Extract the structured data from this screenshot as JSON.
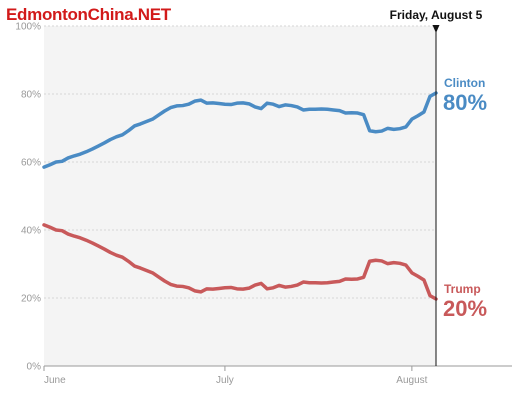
{
  "watermark": "EdmontonChina.NET",
  "chart_data": {
    "type": "line",
    "title": "",
    "xlabel": "",
    "ylabel": "",
    "ylim": [
      0,
      100
    ],
    "y_ticks": [
      "0%",
      "20%",
      "40%",
      "60%",
      "80%",
      "100%"
    ],
    "x_range": [
      "2016-06-01",
      "2016-08-05"
    ],
    "x_ticks": [
      {
        "label": "June",
        "date": "2016-06-01"
      },
      {
        "label": "July",
        "date": "2016-07-01"
      },
      {
        "label": "August",
        "date": "2016-08-01"
      }
    ],
    "grid": true,
    "marker": {
      "date": "2016-08-05",
      "label": "Friday, August 5"
    },
    "series": [
      {
        "name": "Clinton",
        "color": "#4a8bc4",
        "end_label": "80%",
        "points": [
          [
            "2016-06-01",
            58.5
          ],
          [
            "2016-06-02",
            59.2
          ],
          [
            "2016-06-03",
            60.0
          ],
          [
            "2016-06-04",
            60.2
          ],
          [
            "2016-06-05",
            61.2
          ],
          [
            "2016-06-06",
            61.8
          ],
          [
            "2016-06-07",
            62.3
          ],
          [
            "2016-06-08",
            63.0
          ],
          [
            "2016-06-09",
            63.8
          ],
          [
            "2016-06-10",
            64.7
          ],
          [
            "2016-06-11",
            65.6
          ],
          [
            "2016-06-12",
            66.6
          ],
          [
            "2016-06-13",
            67.4
          ],
          [
            "2016-06-14",
            68.0
          ],
          [
            "2016-06-15",
            69.2
          ],
          [
            "2016-06-16",
            70.6
          ],
          [
            "2016-06-17",
            71.2
          ],
          [
            "2016-06-18",
            71.9
          ],
          [
            "2016-06-19",
            72.6
          ],
          [
            "2016-06-20",
            73.8
          ],
          [
            "2016-06-21",
            75.0
          ],
          [
            "2016-06-22",
            76.0
          ],
          [
            "2016-06-23",
            76.5
          ],
          [
            "2016-06-24",
            76.6
          ],
          [
            "2016-06-25",
            77.0
          ],
          [
            "2016-06-26",
            77.9
          ],
          [
            "2016-06-27",
            78.2
          ],
          [
            "2016-06-28",
            77.3
          ],
          [
            "2016-06-29",
            77.4
          ],
          [
            "2016-06-30",
            77.2
          ],
          [
            "2016-07-01",
            77.0
          ],
          [
            "2016-07-02",
            76.9
          ],
          [
            "2016-07-03",
            77.3
          ],
          [
            "2016-07-04",
            77.4
          ],
          [
            "2016-07-05",
            77.1
          ],
          [
            "2016-07-06",
            76.2
          ],
          [
            "2016-07-07",
            75.7
          ],
          [
            "2016-07-08",
            77.3
          ],
          [
            "2016-07-09",
            77.0
          ],
          [
            "2016-07-10",
            76.3
          ],
          [
            "2016-07-11",
            76.8
          ],
          [
            "2016-07-12",
            76.6
          ],
          [
            "2016-07-13",
            76.2
          ],
          [
            "2016-07-14",
            75.3
          ],
          [
            "2016-07-15",
            75.5
          ],
          [
            "2016-07-16",
            75.5
          ],
          [
            "2016-07-17",
            75.6
          ],
          [
            "2016-07-18",
            75.5
          ],
          [
            "2016-07-19",
            75.3
          ],
          [
            "2016-07-20",
            75.1
          ],
          [
            "2016-07-21",
            74.4
          ],
          [
            "2016-07-22",
            74.5
          ],
          [
            "2016-07-23",
            74.4
          ],
          [
            "2016-07-24",
            73.9
          ],
          [
            "2016-07-25",
            69.2
          ],
          [
            "2016-07-26",
            68.9
          ],
          [
            "2016-07-27",
            69.1
          ],
          [
            "2016-07-28",
            69.9
          ],
          [
            "2016-07-29",
            69.6
          ],
          [
            "2016-07-30",
            69.8
          ],
          [
            "2016-07-31",
            70.3
          ],
          [
            "2016-08-01",
            72.6
          ],
          [
            "2016-08-02",
            73.6
          ],
          [
            "2016-08-03",
            74.7
          ],
          [
            "2016-08-04",
            79.3
          ],
          [
            "2016-08-05",
            80.3
          ]
        ]
      },
      {
        "name": "Trump",
        "color": "#c8595a",
        "end_label": "20%",
        "points": [
          [
            "2016-06-01",
            41.5
          ],
          [
            "2016-06-02",
            40.8
          ],
          [
            "2016-06-03",
            40.0
          ],
          [
            "2016-06-04",
            39.8
          ],
          [
            "2016-06-05",
            38.8
          ],
          [
            "2016-06-06",
            38.2
          ],
          [
            "2016-06-07",
            37.7
          ],
          [
            "2016-06-08",
            37.0
          ],
          [
            "2016-06-09",
            36.2
          ],
          [
            "2016-06-10",
            35.3
          ],
          [
            "2016-06-11",
            34.4
          ],
          [
            "2016-06-12",
            33.4
          ],
          [
            "2016-06-13",
            32.6
          ],
          [
            "2016-06-14",
            32.0
          ],
          [
            "2016-06-15",
            30.8
          ],
          [
            "2016-06-16",
            29.4
          ],
          [
            "2016-06-17",
            28.8
          ],
          [
            "2016-06-18",
            28.1
          ],
          [
            "2016-06-19",
            27.4
          ],
          [
            "2016-06-20",
            26.2
          ],
          [
            "2016-06-21",
            25.0
          ],
          [
            "2016-06-22",
            24.0
          ],
          [
            "2016-06-23",
            23.5
          ],
          [
            "2016-06-24",
            23.4
          ],
          [
            "2016-06-25",
            23.0
          ],
          [
            "2016-06-26",
            22.1
          ],
          [
            "2016-06-27",
            21.8
          ],
          [
            "2016-06-28",
            22.7
          ],
          [
            "2016-06-29",
            22.6
          ],
          [
            "2016-06-30",
            22.8
          ],
          [
            "2016-07-01",
            23.0
          ],
          [
            "2016-07-02",
            23.1
          ],
          [
            "2016-07-03",
            22.7
          ],
          [
            "2016-07-04",
            22.6
          ],
          [
            "2016-07-05",
            22.9
          ],
          [
            "2016-07-06",
            23.8
          ],
          [
            "2016-07-07",
            24.3
          ],
          [
            "2016-07-08",
            22.7
          ],
          [
            "2016-07-09",
            23.0
          ],
          [
            "2016-07-10",
            23.7
          ],
          [
            "2016-07-11",
            23.2
          ],
          [
            "2016-07-12",
            23.4
          ],
          [
            "2016-07-13",
            23.8
          ],
          [
            "2016-07-14",
            24.7
          ],
          [
            "2016-07-15",
            24.5
          ],
          [
            "2016-07-16",
            24.5
          ],
          [
            "2016-07-17",
            24.4
          ],
          [
            "2016-07-18",
            24.5
          ],
          [
            "2016-07-19",
            24.7
          ],
          [
            "2016-07-20",
            24.9
          ],
          [
            "2016-07-21",
            25.6
          ],
          [
            "2016-07-22",
            25.5
          ],
          [
            "2016-07-23",
            25.6
          ],
          [
            "2016-07-24",
            26.1
          ],
          [
            "2016-07-25",
            30.8
          ],
          [
            "2016-07-26",
            31.1
          ],
          [
            "2016-07-27",
            30.9
          ],
          [
            "2016-07-28",
            30.1
          ],
          [
            "2016-07-29",
            30.4
          ],
          [
            "2016-07-30",
            30.2
          ],
          [
            "2016-07-31",
            29.7
          ],
          [
            "2016-08-01",
            27.4
          ],
          [
            "2016-08-02",
            26.4
          ],
          [
            "2016-08-03",
            25.3
          ],
          [
            "2016-08-04",
            20.7
          ],
          [
            "2016-08-05",
            19.7
          ]
        ]
      }
    ]
  }
}
